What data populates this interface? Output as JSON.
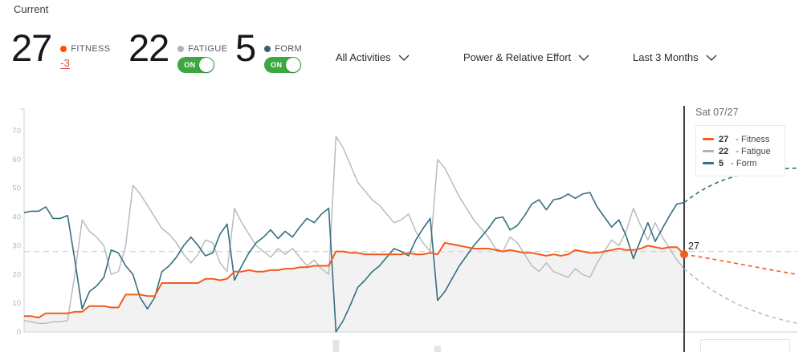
{
  "header": {
    "title": "Current",
    "stats": [
      {
        "value": "27",
        "label": "FITNESS",
        "delta": "-3"
      },
      {
        "value": "22",
        "label": "FATIGUE",
        "toggle": "ON"
      },
      {
        "value": "5",
        "label": "FORM",
        "toggle": "ON"
      }
    ],
    "filters": [
      {
        "label": "All Activities"
      },
      {
        "label": "Power & Relative Effort"
      },
      {
        "label": "Last 3 Months"
      }
    ]
  },
  "tooltip": {
    "date": "Sat 07/27",
    "entries": [
      {
        "value": "27",
        "suffix": " - Fitness",
        "color": "#f25b1e"
      },
      {
        "value": "22",
        "suffix": " - Fatigue",
        "color": "#b2b2b4"
      },
      {
        "value": "5",
        "suffix": " - Form",
        "color": "#35707e"
      }
    ]
  },
  "colors": {
    "fitness": "#f25b1e",
    "fitness_dot": "#fc5200",
    "fatigue": "#b9bbbd",
    "fatigue_dot": "#b2b2b4",
    "form": "#35707e",
    "form_dot": "#2e6675",
    "fill": "#f2f2f3",
    "axis": "#d9d9dc",
    "tick_text": "#b4b4ba",
    "ref_line": "#d2d2d4",
    "today_line": "#404044",
    "delta_negative": "#e0452f",
    "toggle_on": "#3da742",
    "marker_text": "#232327"
  },
  "chart_data": {
    "type": "line",
    "x_range_label": "Last 3 Months",
    "x_end_label": "Sat 07/27",
    "ylim": [
      0,
      75
    ],
    "yticks": [
      0,
      10,
      20,
      30,
      40,
      50,
      60,
      70
    ],
    "grid": "off",
    "legend_position": "top-right tooltip",
    "reference_line_value": 28,
    "marker_label": "27",
    "marker_value": 27,
    "form_axis_offset": 40,
    "series": [
      {
        "name": "Fitness",
        "color": "#f25b1e",
        "current": 27,
        "values": [
          5.5,
          5.5,
          5,
          6.5,
          6.5,
          6.5,
          6.5,
          7,
          7,
          9,
          9,
          9,
          8.5,
          8.5,
          13,
          13,
          13,
          12.5,
          12.5,
          17,
          17,
          17,
          17,
          17,
          17,
          18.5,
          18.5,
          18,
          18.5,
          21,
          21,
          21.5,
          21,
          21,
          21.5,
          21.5,
          22,
          22,
          22.5,
          22.5,
          23,
          23,
          23,
          28,
          28,
          27.5,
          27.5,
          27,
          27,
          27,
          27,
          27,
          27,
          27.5,
          27,
          27,
          27.5,
          27,
          31,
          30.5,
          30,
          29.5,
          29,
          29,
          29,
          28.5,
          28,
          28.5,
          28,
          27.5,
          27.5,
          27,
          26.5,
          27,
          26.5,
          27,
          28.5,
          28,
          27.5,
          27.5,
          28,
          28.5,
          29,
          28.5,
          28.5,
          29,
          30,
          29.5,
          29,
          29.5,
          29.5,
          27
        ]
      },
      {
        "name": "Fatigue",
        "color": "#b9bbbd",
        "current": 22,
        "values": [
          4,
          3.5,
          3,
          3,
          3.5,
          3.5,
          4,
          20,
          39,
          35,
          33,
          30,
          20,
          21,
          30,
          51,
          48,
          44,
          40,
          36,
          34,
          31,
          27,
          24,
          27,
          32,
          31,
          24,
          21,
          43,
          38,
          34,
          30,
          28,
          26,
          29,
          27,
          29,
          26,
          23,
          25,
          22,
          20,
          68,
          64,
          58,
          52,
          49,
          46,
          44,
          41,
          38,
          39,
          41,
          35,
          31,
          28,
          60,
          57,
          52,
          47,
          43,
          39,
          36,
          33,
          29,
          28,
          33,
          31,
          27,
          23,
          21,
          24,
          21,
          20,
          19,
          22,
          20,
          19,
          24,
          28,
          32,
          30,
          35,
          43,
          37,
          32,
          38,
          33,
          29,
          25,
          22
        ]
      },
      {
        "name": "Form",
        "color": "#35707e",
        "current": 5,
        "values": [
          1.5,
          2,
          2,
          3.5,
          -0.5,
          -0.5,
          0.5,
          -15,
          -32,
          -26,
          -24,
          -21,
          -11.5,
          -12.5,
          -17,
          -20,
          -28,
          -32,
          -28,
          -19,
          -17,
          -14,
          -10,
          -7,
          -10,
          -13.5,
          -12.5,
          -6,
          -2.5,
          -22,
          -17,
          -12.5,
          -9,
          -7,
          -4.5,
          -7.5,
          -5,
          -7,
          -3.5,
          -0.5,
          -2,
          1,
          3,
          -40,
          -36,
          -30.5,
          -24.5,
          -22,
          -19,
          -17,
          -14,
          -11,
          -12,
          -13.5,
          -8,
          -4,
          -0.5,
          -29,
          -26,
          -21.5,
          -17,
          -13.5,
          -10,
          -7,
          -4,
          -0.5,
          0,
          -4.5,
          -3,
          0.5,
          4.5,
          6,
          2.5,
          6,
          6.5,
          8,
          6.5,
          8,
          8.5,
          3.5,
          0,
          -3.5,
          -1,
          -6.5,
          -14.5,
          -8,
          -2,
          -8.5,
          -4,
          0.5,
          4.5,
          5
        ]
      }
    ],
    "projection": {
      "days_shown": 16,
      "fitness_end_value": 20,
      "fatigue_end_value": 3,
      "form_end_value": 17
    },
    "below_axis_bars": [
      {
        "day": 43,
        "top_offset": 10,
        "height": 15
      },
      {
        "day": 57,
        "top_offset": 17,
        "height": 8
      }
    ]
  }
}
